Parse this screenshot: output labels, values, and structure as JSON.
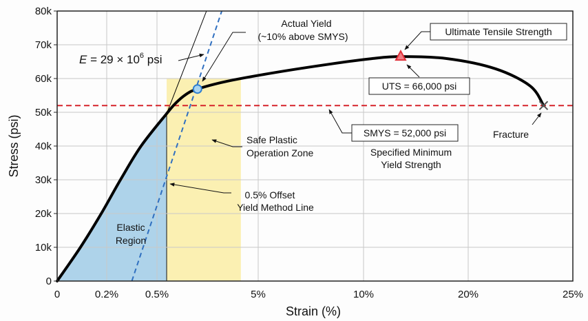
{
  "chart_data": {
    "type": "line",
    "xlabel": "Strain (%)",
    "ylabel": "Stress (psi)",
    "x_ticks": [
      0,
      0.2,
      0.5,
      5,
      10,
      20,
      25
    ],
    "x_tick_labels": [
      "0",
      "0.2%",
      "0.5%",
      "5%",
      "10%",
      "20%",
      "25%"
    ],
    "x_scale": "non-linear (piecewise between labeled ticks)",
    "y_ticks": [
      0,
      10,
      20,
      30,
      40,
      50,
      60,
      70,
      80
    ],
    "y_tick_labels": [
      "0",
      "10k",
      "20k",
      "30k",
      "40k",
      "50k",
      "60k",
      "70k",
      "80k"
    ],
    "xlim": [
      0,
      25
    ],
    "ylim": [
      0,
      80
    ],
    "y_units": "k psi",
    "grid": true,
    "stress_strain_curve": {
      "x": [
        0,
        0.094,
        0.178,
        0.282,
        0.405,
        0.93,
        1.33,
        1.79,
        2.3,
        3.62,
        5.82,
        8.43,
        10.79,
        13.55,
        18.0,
        21.3,
        22.96,
        23.6
      ],
      "y": [
        0,
        10,
        20,
        30,
        40,
        49.6,
        52.7,
        55.3,
        56.9,
        59.2,
        61.8,
        64.3,
        65.9,
        66.5,
        65.9,
        62.9,
        57.8,
        52
      ],
      "color": "#000000"
    },
    "modulus_line": {
      "x": [
        0.93,
        2.7
      ],
      "y": [
        49.6,
        80
      ],
      "color": "#000000"
    },
    "offset_line": {
      "x": [
        0.35,
        3.38
      ],
      "y": [
        0,
        80
      ],
      "color": "#2f6fc0"
    },
    "smys_line": {
      "y": 52,
      "color": "#d6232a"
    },
    "elastic_region": {
      "x": [
        0,
        0.93
      ],
      "color": "#aed3ea"
    },
    "plastic_zone": {
      "x": [
        0.93,
        4.23
      ],
      "y_top": 60,
      "color": "#fbf0b2"
    },
    "points": {
      "actual_yield": {
        "x": 2.3,
        "y": 56.9,
        "color": "#2f7ed0"
      },
      "uts": {
        "x": 13.55,
        "y": 66.5,
        "color": "#e0313a"
      },
      "fracture": {
        "x": 23.6,
        "y": 52,
        "color": "#555555"
      }
    },
    "annotations": {
      "actual_yield": [
        "Actual Yield",
        "(~10% above SMYS)"
      ],
      "modulus": {
        "prefix": "E",
        "text": " = 29 × 10",
        "sup": "6",
        "suffix": " psi"
      },
      "uts_title": "Ultimate Tensile Strength",
      "uts_value": "UTS = 66,000 psi",
      "smys_value": "SMYS = 52,000 psi",
      "smys_desc": [
        "Specified Minimum",
        "Yield Strength"
      ],
      "fracture": "Fracture",
      "safe_zone": [
        "Safe Plastic",
        "Operation Zone"
      ],
      "offset": [
        "0.5% Offset",
        "Yield Method Line"
      ],
      "elastic": [
        "Elastic",
        "Region"
      ]
    }
  }
}
